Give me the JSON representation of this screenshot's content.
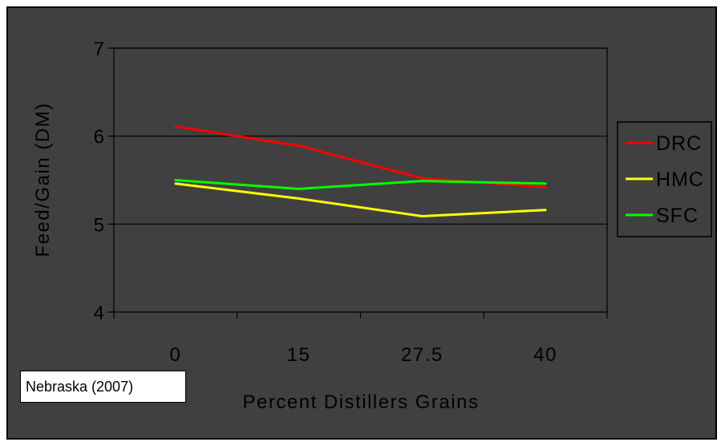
{
  "chart_data": {
    "type": "line",
    "title": "",
    "xlabel": "Percent Distillers Grains",
    "ylabel": "Feed/Gain (DM)",
    "categories": [
      "0",
      "15",
      "27.5",
      "40"
    ],
    "ylim": [
      4,
      7
    ],
    "yticks": [
      "4",
      "5",
      "6",
      "7"
    ],
    "grid": "horizontal",
    "legend_position": "right",
    "series": [
      {
        "name": "DRC",
        "color": "#ff0000",
        "values": [
          6.11,
          5.89,
          5.52,
          5.42
        ]
      },
      {
        "name": "HMC",
        "color": "#ffff00",
        "values": [
          5.46,
          5.29,
          5.09,
          5.16
        ]
      },
      {
        "name": "SFC",
        "color": "#00ff00",
        "values": [
          5.5,
          5.4,
          5.49,
          5.46
        ]
      }
    ]
  },
  "source_note": "Nebraska (2007)",
  "colors": {
    "background": "#404040",
    "axis": "#000000",
    "text": "#000000"
  }
}
